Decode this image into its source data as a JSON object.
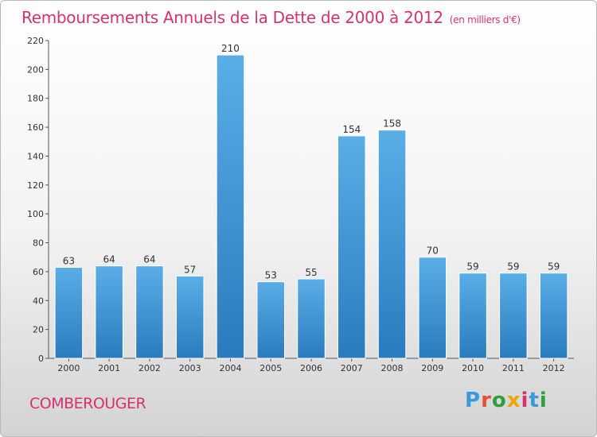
{
  "header": {
    "title": "Remboursements Annuels de la Dette de 2000 à 2012",
    "subtitle": "(en milliers d'€)"
  },
  "footer": {
    "commune": "COMBEROUGER",
    "logo": "Proxiti",
    "logo_colors": [
      "#3a9ad9",
      "#e8502c",
      "#2e9e3e",
      "#f0a500",
      "#d6336c",
      "#3a9ad9",
      "#2e9e3e"
    ]
  },
  "chart_data": {
    "type": "bar",
    "title": "Remboursements Annuels de la Dette de 2000 à 2012",
    "subtitle": "(en milliers d'€)",
    "categories": [
      "2000",
      "2001",
      "2002",
      "2003",
      "2004",
      "2005",
      "2006",
      "2007",
      "2008",
      "2009",
      "2010",
      "2011",
      "2012"
    ],
    "values": [
      63,
      64,
      64,
      57,
      210,
      53,
      55,
      154,
      158,
      70,
      59,
      59,
      59
    ],
    "ylim": [
      0,
      220
    ],
    "yticks": [
      0,
      20,
      40,
      60,
      80,
      100,
      120,
      140,
      160,
      180,
      200,
      220
    ],
    "grid": false,
    "legend": "none",
    "colors": {
      "bar_top": "#5aaee6",
      "bar_bottom": "#2a7bbd",
      "axis": "#555555"
    }
  }
}
